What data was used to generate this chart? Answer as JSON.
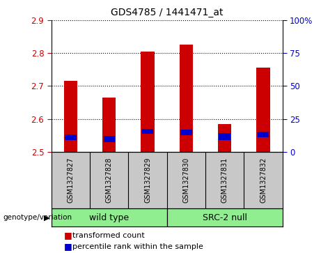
{
  "title": "GDS4785 / 1441471_at",
  "samples": [
    "GSM1327827",
    "GSM1327828",
    "GSM1327829",
    "GSM1327830",
    "GSM1327831",
    "GSM1327832"
  ],
  "red_bottom": [
    2.5,
    2.5,
    2.5,
    2.5,
    2.5,
    2.5
  ],
  "red_top": [
    2.715,
    2.665,
    2.805,
    2.825,
    2.585,
    2.755
  ],
  "blue_bottom": [
    2.535,
    2.53,
    2.555,
    2.55,
    2.535,
    2.545
  ],
  "blue_top": [
    2.552,
    2.548,
    2.57,
    2.568,
    2.556,
    2.56
  ],
  "ylim_left": [
    2.5,
    2.9
  ],
  "ylim_right": [
    0,
    100
  ],
  "yticks_left": [
    2.5,
    2.6,
    2.7,
    2.8,
    2.9
  ],
  "yticks_right": [
    0,
    25,
    50,
    75,
    100
  ],
  "ytick_labels_right": [
    "0",
    "25",
    "50",
    "75",
    "100%"
  ],
  "group_bg_color": "#c8c8c8",
  "bar_width": 0.35,
  "red_color": "#cc0000",
  "blue_color": "#0000cc",
  "left_tick_color": "#cc0000",
  "right_tick_color": "#0000cc",
  "legend_items": [
    {
      "color": "#cc0000",
      "label": "transformed count"
    },
    {
      "color": "#0000cc",
      "label": "percentile rank within the sample"
    }
  ],
  "genotype_label": "genotype/variation",
  "plot_bg_color": "#ffffff",
  "grid_color": "#000000",
  "green_color": "#90ee90",
  "wild_type_range": [
    0,
    2
  ],
  "src2_null_range": [
    3,
    5
  ]
}
